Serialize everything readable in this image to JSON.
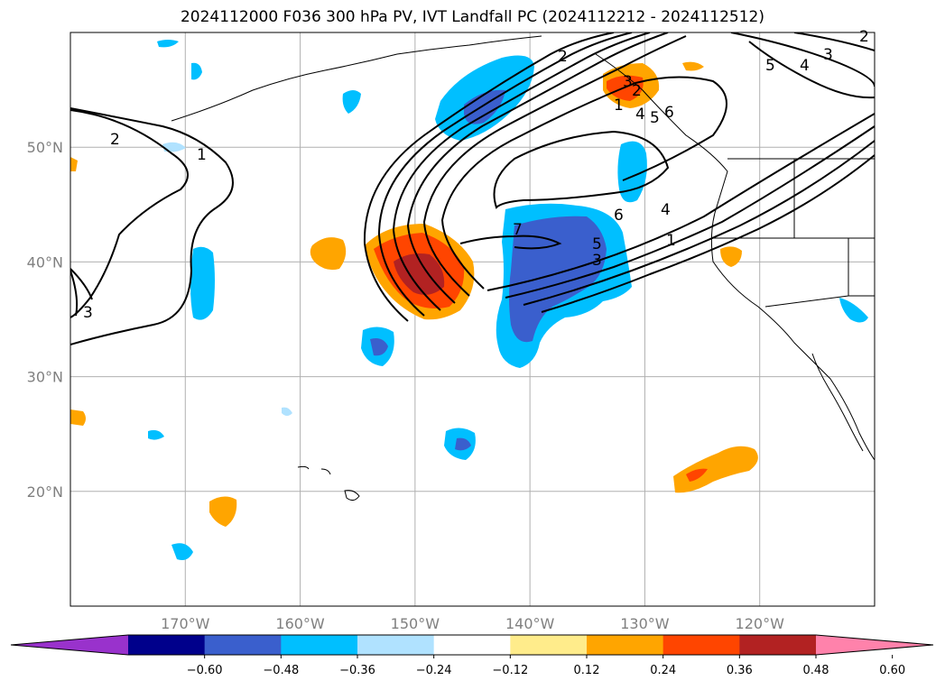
{
  "title": "2024112000 F036 300 hPa PV, IVT Landfall PC (2024112212 - 2024112512)",
  "map": {
    "lon_range": [
      -180,
      -110
    ],
    "lat_range": [
      10,
      60
    ],
    "lon_ticks": [
      {
        "value": -170,
        "label": "170°W"
      },
      {
        "value": -160,
        "label": "160°W"
      },
      {
        "value": -150,
        "label": "150°W"
      },
      {
        "value": -140,
        "label": "140°W"
      },
      {
        "value": -130,
        "label": "130°W"
      },
      {
        "value": -120,
        "label": "120°W"
      }
    ],
    "lat_ticks": [
      {
        "value": 50,
        "label": "50°N"
      },
      {
        "value": 40,
        "label": "40°N"
      },
      {
        "value": 30,
        "label": "30°N"
      },
      {
        "value": 20,
        "label": "20°N"
      }
    ],
    "grid": true,
    "contour_labels": [
      "1",
      "2",
      "3",
      "4",
      "5",
      "6",
      "7",
      "1",
      "2",
      "3",
      "3",
      "4",
      "5",
      "6",
      "1",
      "2",
      "4",
      "5",
      "3",
      "2"
    ]
  },
  "colorbar": {
    "extend": "both",
    "colors": [
      "#9932cc",
      "#00008b",
      "#3a5fcd",
      "#00bfff",
      "#b0e2ff",
      "#ffffff",
      "#ffec8b",
      "#ffa500",
      "#ff4500",
      "#b22222",
      "#ff82ab"
    ],
    "ticks": [
      "−0.60",
      "−0.48",
      "−0.36",
      "−0.24",
      "−0.12",
      "0.12",
      "0.24",
      "0.36",
      "0.48",
      "0.60"
    ]
  }
}
